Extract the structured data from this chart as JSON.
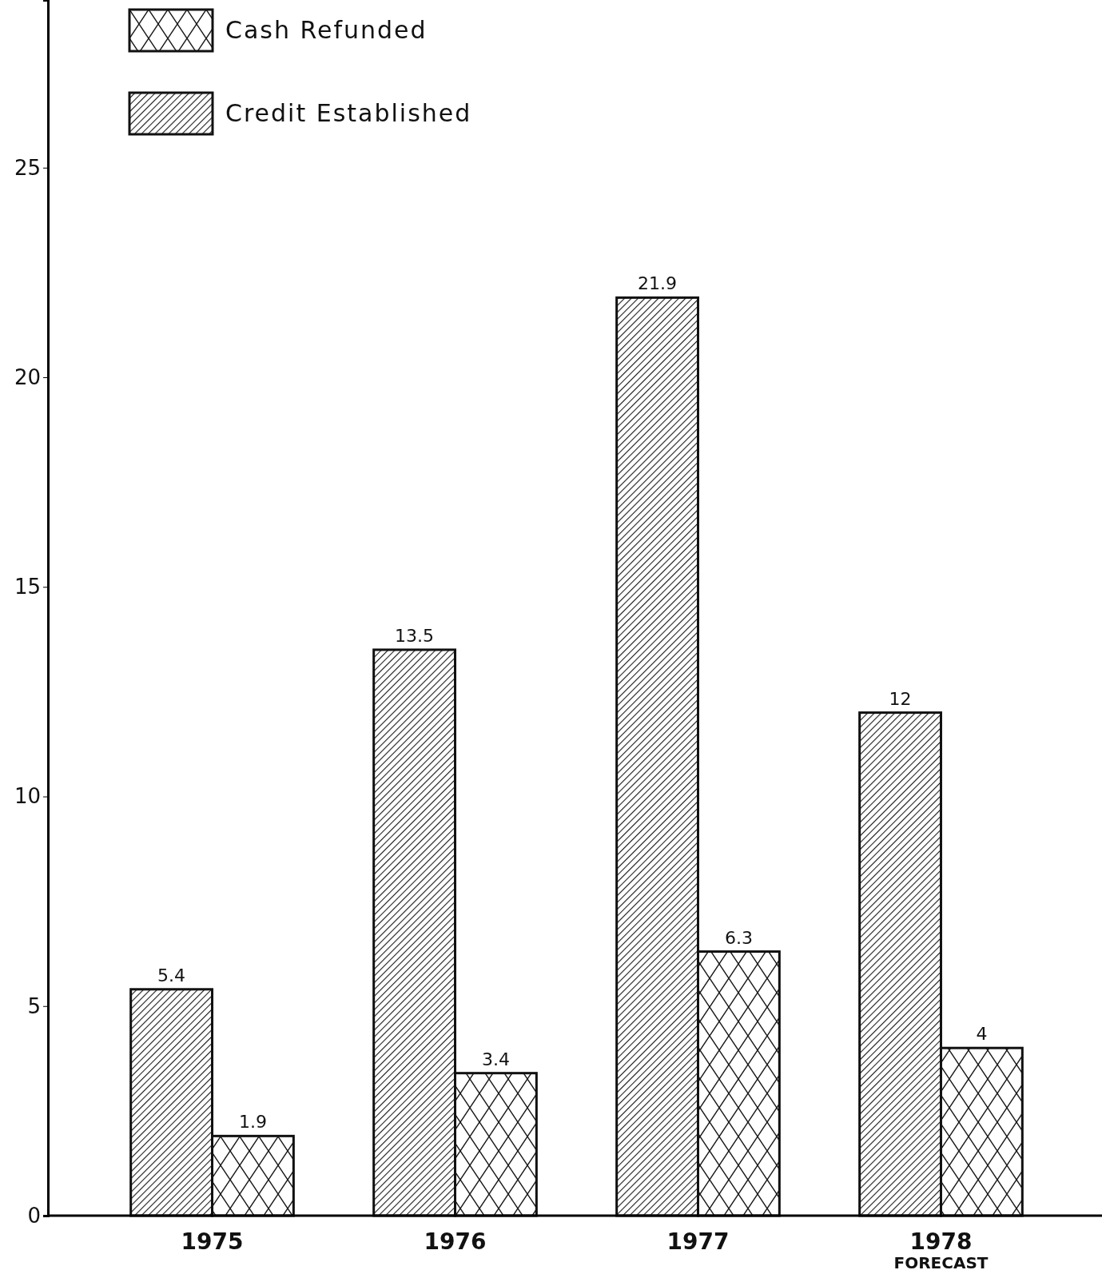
{
  "chart_data": {
    "type": "bar",
    "categories": [
      "1975",
      "1976",
      "1977",
      "1978\nFORECAST"
    ],
    "series": [
      {
        "name": "Credit Established",
        "color": "#1a1a1a",
        "values": [
          5.4,
          13.5,
          21.9,
          12
        ]
      },
      {
        "name": "Cash Refunded",
        "color": "#1a1a1a",
        "values": [
          1.9,
          3.4,
          6.3,
          4
        ]
      }
    ],
    "ylim": [
      0,
      29
    ],
    "yticks": [
      0,
      5,
      10,
      15,
      20,
      25
    ],
    "data_labels": true,
    "legend": "top left"
  }
}
